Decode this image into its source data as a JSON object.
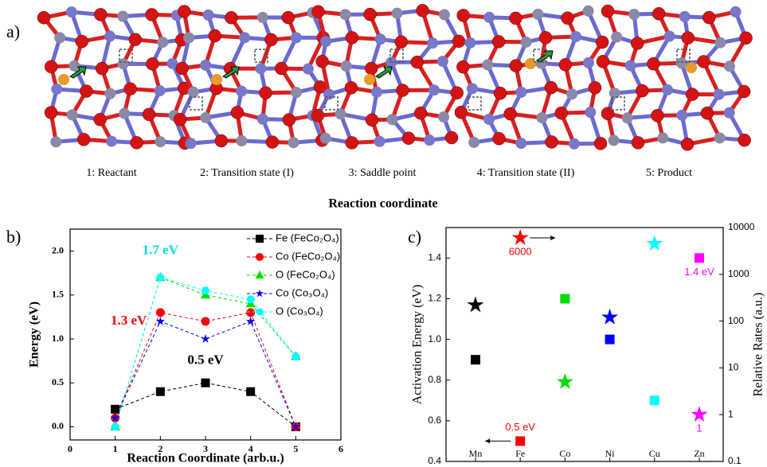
{
  "panel_a": {
    "label": "a)",
    "captions": [
      "1: Reactant",
      "2: Transition state (I)",
      "3: Saddle point",
      "4: Transition state (II)",
      "5: Product"
    ],
    "axis_title": "Reaction coordinate"
  },
  "chart_data": [
    {
      "type": "line",
      "panel_label": "b)",
      "x_label": "Reaction Coordinate (arb.u.)",
      "y_label": "Energy (eV)",
      "x": [
        1,
        2,
        3,
        4,
        5
      ],
      "xlim": [
        0,
        6
      ],
      "xticks": [
        0,
        1,
        2,
        3,
        4,
        5,
        6
      ],
      "ylim": [
        -0.15,
        2.25
      ],
      "yticks": [
        {
          "value": 0,
          "label": "0.0"
        },
        0.5,
        {
          "value": 1,
          "label": "1.0"
        },
        1.5,
        {
          "value": 2,
          "label": "2.0"
        }
      ],
      "legend": "upper right",
      "series": [
        {
          "name": "Fe (FeCo₂O₄)",
          "color": "#000000",
          "marker": "square",
          "values": [
            0.2,
            0.4,
            0.5,
            0.4,
            0.0
          ]
        },
        {
          "name": "Co (FeCo₂O₄)",
          "color": "#ff0000",
          "marker": "circle",
          "values": [
            0.1,
            1.3,
            1.2,
            1.3,
            0.0
          ]
        },
        {
          "name": "O (FeCo₂O₄)",
          "color": "#00dd00",
          "marker": "triangle",
          "values": [
            0.0,
            1.7,
            1.5,
            1.4,
            0.8
          ]
        },
        {
          "name": "Co (Co₃O₄)",
          "color": "#0000ff",
          "marker": "star",
          "values": [
            0.1,
            1.2,
            1.0,
            1.2,
            0.0
          ]
        },
        {
          "name": "O (Co₃O₄)",
          "color": "#00ffff",
          "marker": "hexagon",
          "values": [
            0.0,
            1.7,
            1.55,
            1.45,
            0.8
          ]
        }
      ],
      "annotations": [
        {
          "text": "1.7 eV",
          "color": "#00e0e0"
        },
        {
          "text": "1.3 eV",
          "color": "#ff0000"
        },
        {
          "text": "0.5 eV",
          "color": "#000000"
        }
      ]
    },
    {
      "type": "scatter",
      "panel_label": "c)",
      "y_label": "Activation Energy (eV)",
      "y2_label": "Relative Rates (a.u.)",
      "categories": [
        "Mn",
        "Fe",
        "Co",
        "Ni",
        "Cu",
        "Zn"
      ],
      "ylim": [
        0.4,
        1.55
      ],
      "yticks": [
        0.4,
        0.6,
        0.8,
        {
          "value": 1,
          "label": "1.0"
        },
        1.2,
        1.4
      ],
      "y2lim": [
        0.1,
        10000
      ],
      "y2log": true,
      "y2ticks": [
        0.1,
        1,
        10,
        100,
        1000,
        10000
      ],
      "series": [
        {
          "marker": "square",
          "colors": [
            "#000000",
            "#ff0000",
            "#00dd00",
            "#0000ff",
            "#00ffff",
            "#ff00ff"
          ],
          "values": [
            0.9,
            0.5,
            1.2,
            1.0,
            0.7,
            1.4
          ],
          "value_labels": [
            null,
            "0.5 eV",
            null,
            null,
            null,
            "1.4 eV"
          ]
        },
        {
          "marker": "star",
          "axis": "y2",
          "colors": [
            "#000000",
            "#ff0000",
            "#00dd00",
            "#0000ff",
            "#00ffff",
            "#ff00ff"
          ],
          "values": [
            220,
            6000,
            5,
            120,
            4500,
            1
          ],
          "value_labels": [
            null,
            "6000",
            null,
            null,
            null,
            "1"
          ]
        }
      ]
    }
  ]
}
